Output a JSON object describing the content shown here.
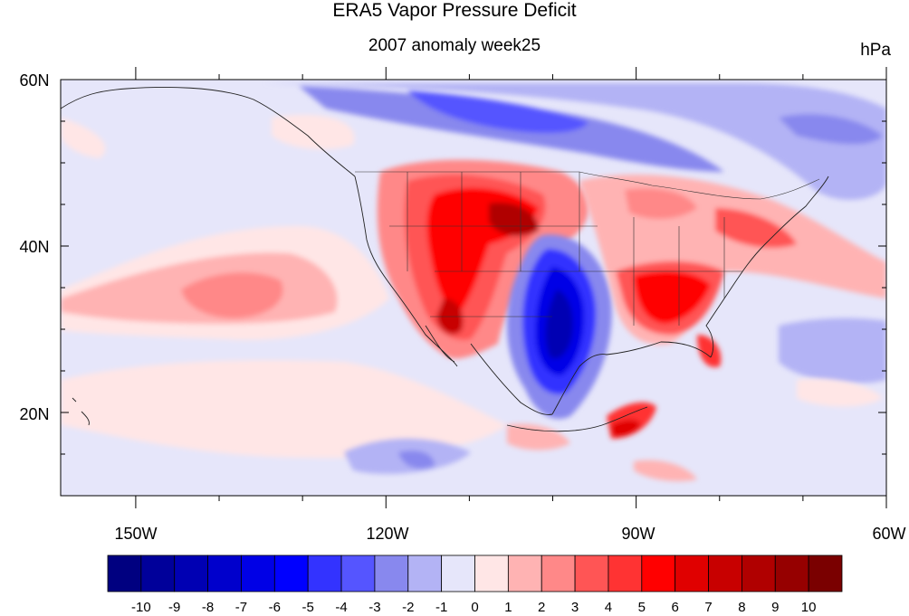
{
  "title": "ERA5 Vapor Pressure Deficit",
  "subtitle": "2007 anomaly week25",
  "units": "hPa",
  "axes": {
    "lat_labels": [
      "60N",
      "40N",
      "20N"
    ],
    "lon_labels": [
      "150W",
      "120W",
      "90W",
      "60W"
    ],
    "lat_values": [
      60,
      40,
      20
    ],
    "lon_values": [
      -150,
      -120,
      -90,
      -60
    ],
    "lat_range": [
      10,
      60
    ],
    "lon_range": [
      -159,
      -60
    ]
  },
  "colorbar": {
    "labels": [
      "-10",
      "-9",
      "-8",
      "-7",
      "-6",
      "-5",
      "-4",
      "-3",
      "-2",
      "-1",
      "0",
      "1",
      "2",
      "3",
      "4",
      "5",
      "6",
      "7",
      "8",
      "9",
      "10"
    ],
    "colors": [
      "#000080",
      "#00009a",
      "#0000b3",
      "#0000cc",
      "#0000e6",
      "#0000ff",
      "#3333ff",
      "#5555ff",
      "#8888ee",
      "#b3b3f5",
      "#e6e6fa",
      "#ffe6e6",
      "#ffb3b3",
      "#ff8888",
      "#ff5555",
      "#ff3333",
      "#ff0000",
      "#e00000",
      "#c80000",
      "#b00000",
      "#960000",
      "#7a0000"
    ]
  },
  "colors": {
    "background_anomaly": "#e6e6fa",
    "frame": "#000000"
  }
}
